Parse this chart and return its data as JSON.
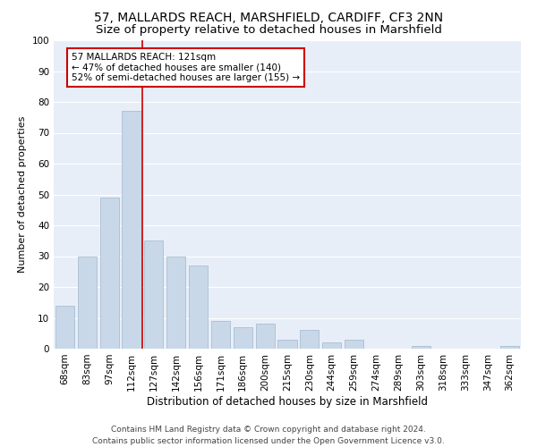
{
  "title1": "57, MALLARDS REACH, MARSHFIELD, CARDIFF, CF3 2NN",
  "title2": "Size of property relative to detached houses in Marshfield",
  "xlabel": "Distribution of detached houses by size in Marshfield",
  "ylabel": "Number of detached properties",
  "categories": [
    "68sqm",
    "83sqm",
    "97sqm",
    "112sqm",
    "127sqm",
    "142sqm",
    "156sqm",
    "171sqm",
    "186sqm",
    "200sqm",
    "215sqm",
    "230sqm",
    "244sqm",
    "259sqm",
    "274sqm",
    "289sqm",
    "303sqm",
    "318sqm",
    "333sqm",
    "347sqm",
    "362sqm"
  ],
  "values": [
    14,
    30,
    49,
    77,
    35,
    30,
    27,
    9,
    7,
    8,
    3,
    6,
    2,
    3,
    0,
    0,
    1,
    0,
    0,
    0,
    1
  ],
  "bar_color": "#c8d8e8",
  "bar_edge_color": "#a0b8cc",
  "vline_color": "#cc0000",
  "annotation_text": "57 MALLARDS REACH: 121sqm\n← 47% of detached houses are smaller (140)\n52% of semi-detached houses are larger (155) →",
  "annotation_box_color": "#ffffff",
  "annotation_box_edge_color": "#cc0000",
  "ylim": [
    0,
    100
  ],
  "yticks": [
    0,
    10,
    20,
    30,
    40,
    50,
    60,
    70,
    80,
    90,
    100
  ],
  "background_color": "#e8eef8",
  "grid_color": "#ffffff",
  "footer_text": "Contains HM Land Registry data © Crown copyright and database right 2024.\nContains public sector information licensed under the Open Government Licence v3.0.",
  "title1_fontsize": 10,
  "title2_fontsize": 9.5,
  "xlabel_fontsize": 8.5,
  "ylabel_fontsize": 8,
  "tick_fontsize": 7.5,
  "annotation_fontsize": 7.5,
  "footer_fontsize": 6.5,
  "vline_bar_index": 3.5
}
